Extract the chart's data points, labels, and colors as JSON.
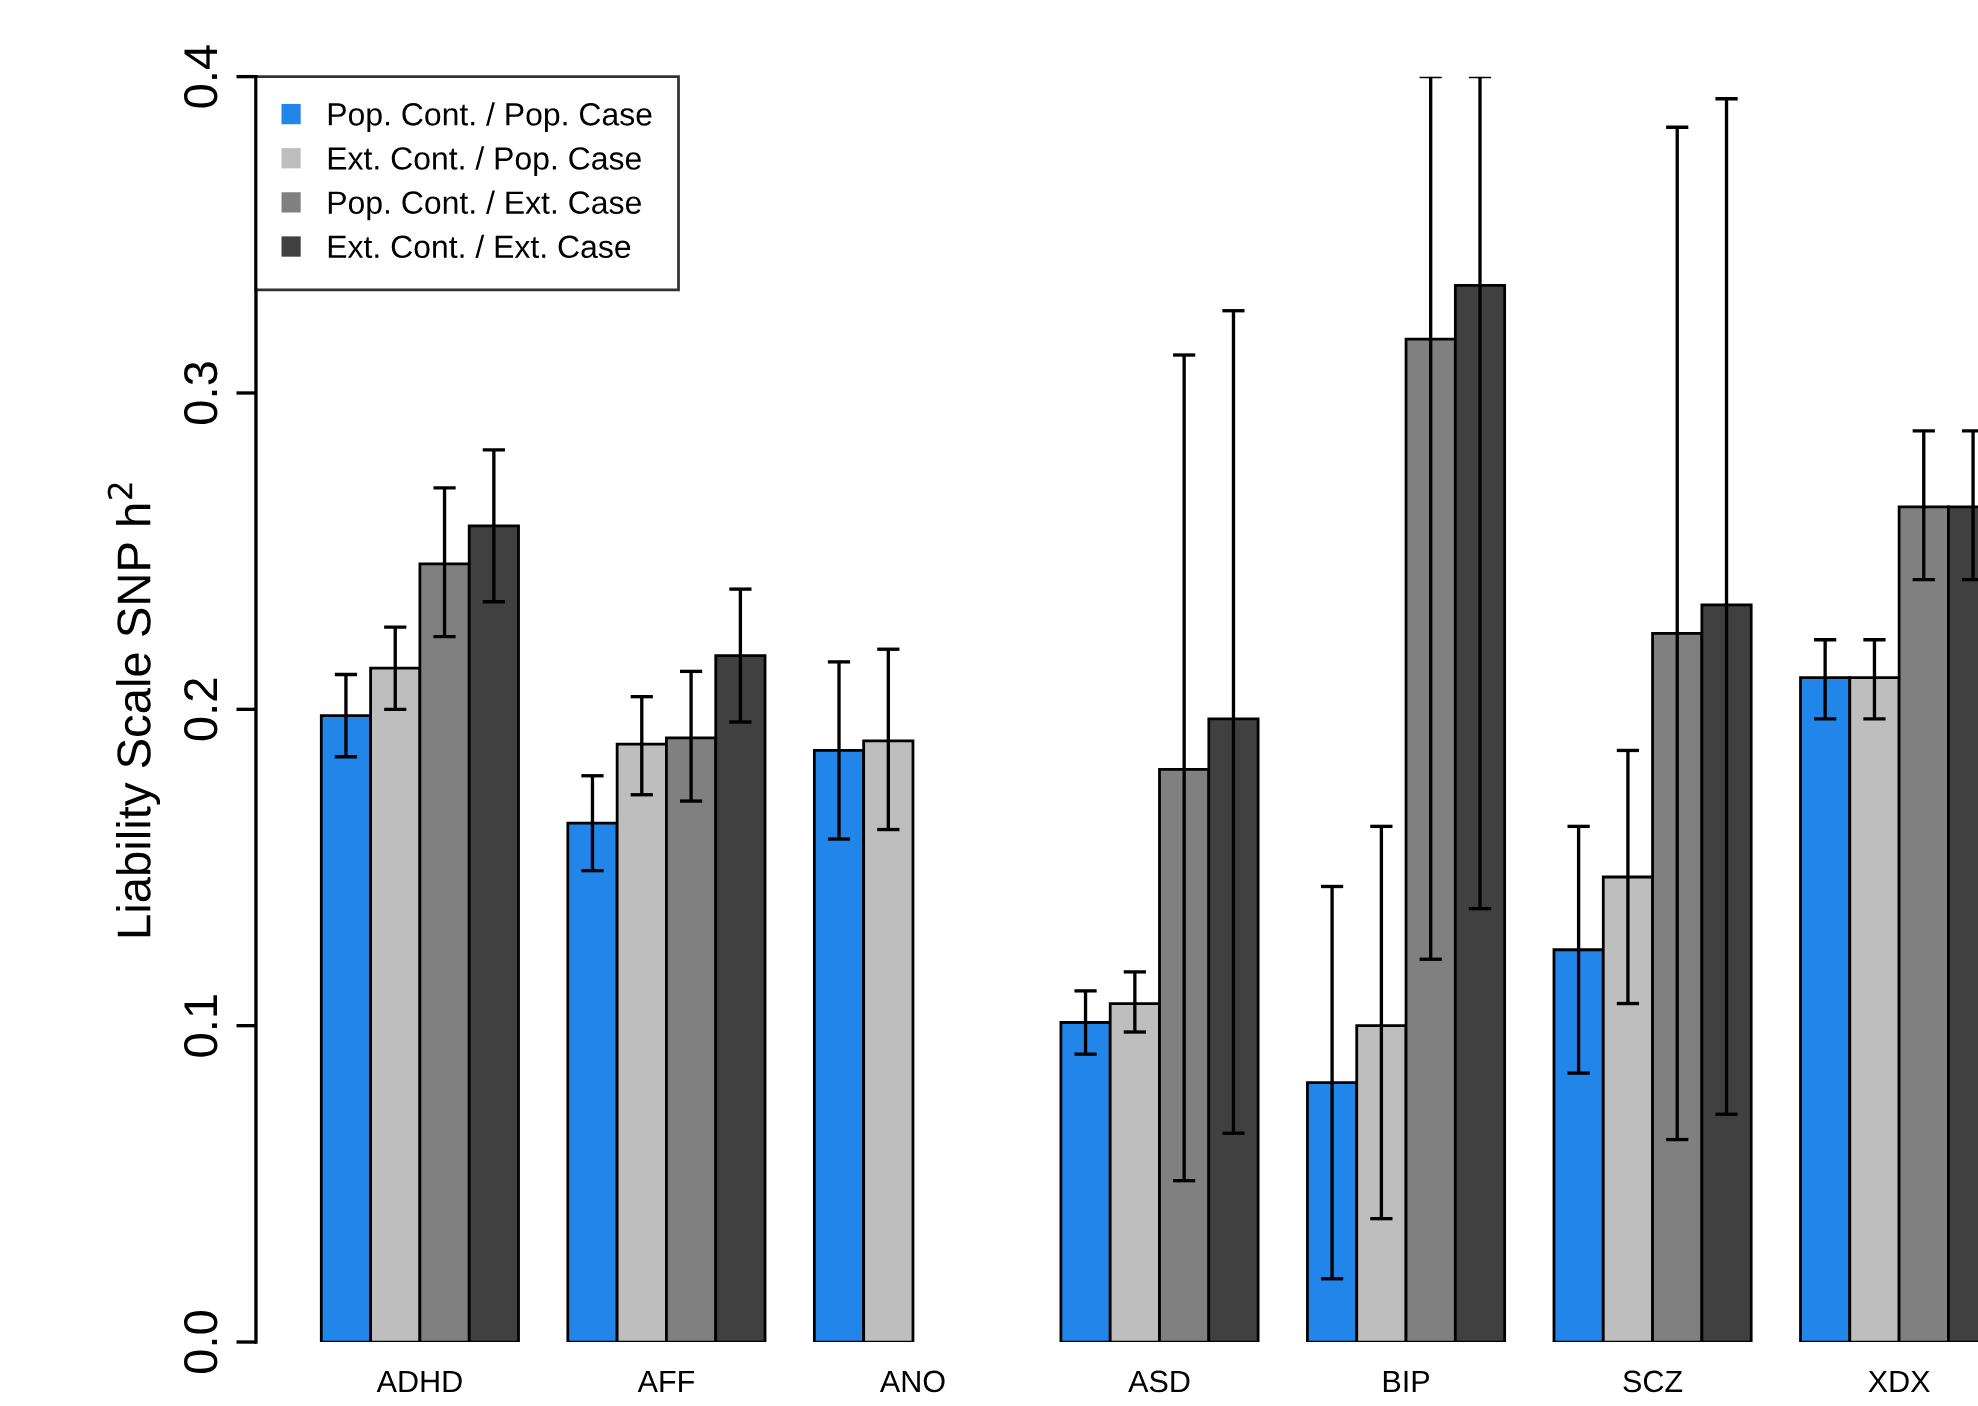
{
  "chart_data": {
    "type": "bar",
    "ylabel": "Liability Scale SNP h$^{2}$",
    "categories": [
      "ADHD",
      "AFF",
      "ANO",
      "ASD",
      "BIP",
      "SCZ",
      "XDX"
    ],
    "ylim": [
      0,
      0.4
    ],
    "yticks": [
      {
        "value": 0,
        "label": "0.0"
      },
      0.1,
      0.2,
      0.3,
      0.4
    ],
    "grid": false,
    "legend": "top left",
    "series": [
      {
        "name": "Pop. Cont. / Pop. Case",
        "color": "#2185ea",
        "values": [
          0.198,
          0.164,
          0.187,
          0.101,
          0.082,
          0.124,
          0.21
        ],
        "errors": [
          [
            0.185,
            0.211
          ],
          [
            0.149,
            0.179
          ],
          [
            0.159,
            0.215
          ],
          [
            0.091,
            0.111
          ],
          [
            0.02,
            0.144
          ],
          [
            0.085,
            0.163
          ],
          [
            0.197,
            0.222
          ]
        ]
      },
      {
        "name": "Ext. Cont. / Pop. Case",
        "color": "#bebebe",
        "values": [
          0.213,
          0.189,
          0.19,
          0.107,
          0.1,
          0.147,
          0.21
        ],
        "errors": [
          [
            0.2,
            0.226
          ],
          [
            0.173,
            0.204
          ],
          [
            0.162,
            0.219
          ],
          [
            0.098,
            0.117
          ],
          [
            0.039,
            0.163
          ],
          [
            0.107,
            0.187
          ],
          [
            0.197,
            0.222
          ]
        ]
      },
      {
        "name": "Pop. Cont. / Ext. Case",
        "color": "#808080",
        "values": [
          0.246,
          0.191,
          null,
          0.181,
          0.317,
          0.224,
          0.264
        ],
        "errors": [
          [
            0.223,
            0.27
          ],
          [
            0.171,
            0.212
          ],
          null,
          [
            0.051,
            0.312
          ],
          [
            0.121,
            0.4
          ],
          [
            0.064,
            0.384
          ],
          [
            0.241,
            0.288
          ]
        ]
      },
      {
        "name": "Ext. Cont. / Ext. Case",
        "color": "#404040",
        "values": [
          0.258,
          0.217,
          null,
          0.197,
          0.334,
          0.233,
          0.264
        ],
        "errors": [
          [
            0.234,
            0.282
          ],
          [
            0.196,
            0.238
          ],
          null,
          [
            0.066,
            0.326
          ],
          [
            0.137,
            0.4
          ],
          [
            0.072,
            0.393
          ],
          [
            0.241,
            0.288
          ]
        ]
      }
    ]
  }
}
